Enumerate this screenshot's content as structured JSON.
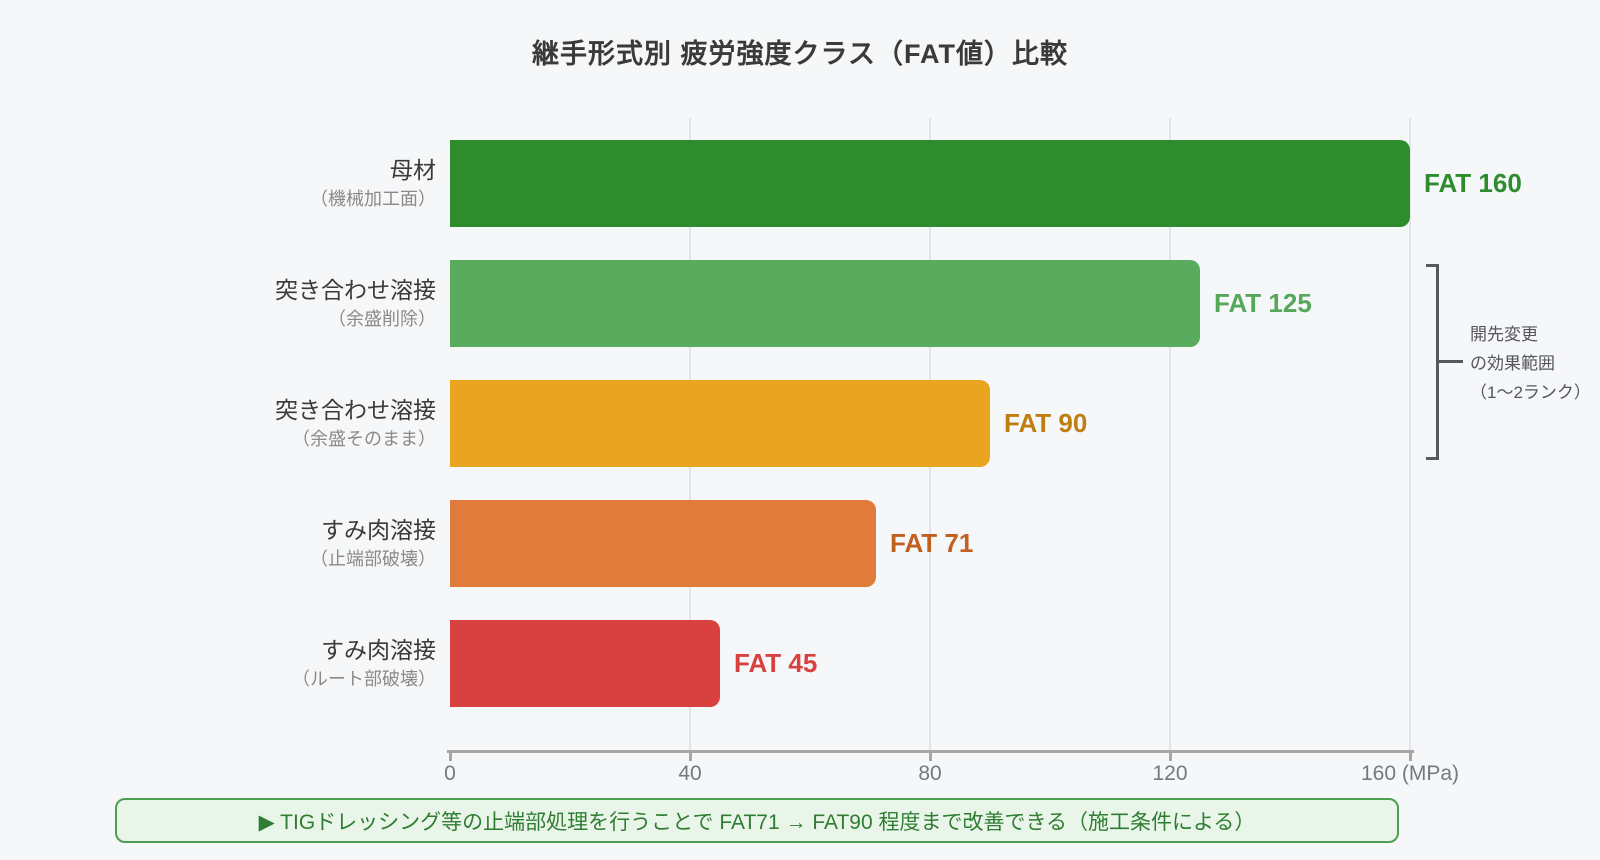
{
  "page": {
    "background": "#f5f7f8"
  },
  "title": "継手形式別 疲労強度クラス（FAT値）比較",
  "chart_data": {
    "type": "bar",
    "orientation": "horizontal",
    "title": "継手形式別 疲労強度クラス（FAT値）比較",
    "xlabel": "(MPa)",
    "unit": "MPa",
    "xlim": [
      0,
      160
    ],
    "xticks": [
      0,
      40,
      80,
      120,
      160
    ],
    "grid": true,
    "categories": [
      {
        "main": "母材",
        "sub": "（機械加工面）"
      },
      {
        "main": "突き合わせ溶接",
        "sub": "（余盛削除）"
      },
      {
        "main": "突き合わせ溶接",
        "sub": "（余盛そのまま）"
      },
      {
        "main": "すみ肉溶接",
        "sub": "（止端部破壊）"
      },
      {
        "main": "すみ肉溶接",
        "sub": "（ルート部破壊）"
      }
    ],
    "values": [
      160,
      125,
      90,
      71,
      45
    ],
    "value_labels": [
      "FAT 160",
      "FAT 125",
      "FAT 90",
      "FAT 71",
      "FAT 45"
    ],
    "bar_colors": [
      "#2e8b2e",
      "#5aab5e",
      "#e9a51f",
      "#e07b3c",
      "#d94040"
    ],
    "value_label_colors": [
      "#2e8b2e",
      "#55a75a",
      "#c07d12",
      "#c2601f",
      "#d94040"
    ]
  },
  "bracket_annotation": {
    "lines": [
      "開先変更",
      "の効果範囲",
      "（1～2ランク）"
    ],
    "color": "#555659"
  },
  "note": {
    "text": "▶ TIGドレッシング等の止端部処理を行うことで FAT71 → FAT90 程度まで改善できる（施工条件による）",
    "text_color": "#2f7d32",
    "border_color": "#4e9e52",
    "background": "#e9f5e9"
  }
}
